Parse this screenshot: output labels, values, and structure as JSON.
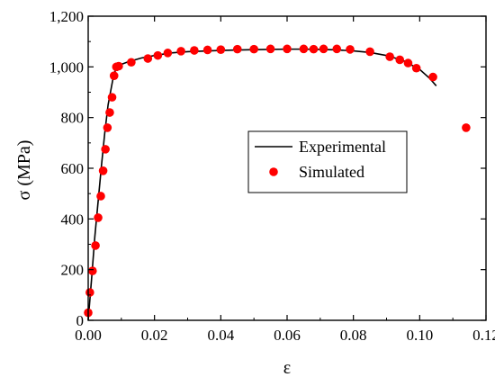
{
  "chart_data": {
    "type": "scatter",
    "xlabel": "ε",
    "ylabel": "σ (MPa)",
    "xlim": [
      0,
      0.12
    ],
    "ylim": [
      0,
      1200
    ],
    "x_ticks": [
      0,
      0.02,
      0.04,
      0.06,
      0.08,
      0.1,
      0.12
    ],
    "x_tick_labels": [
      "0.00",
      "0.02",
      "0.04",
      "0.06",
      "0.08",
      "0.10",
      "0.12"
    ],
    "y_ticks": [
      0,
      200,
      400,
      600,
      800,
      1000,
      1200
    ],
    "y_tick_labels": [
      "0",
      "200",
      "400",
      "600",
      "800",
      "1,000",
      "1,200"
    ],
    "grid": false,
    "legend_position": "center-right",
    "series": [
      {
        "name": "Experimental",
        "style": "line",
        "color": "#000000",
        "x": [
          0,
          0.001,
          0.002,
          0.003,
          0.004,
          0.005,
          0.006,
          0.007,
          0.0075,
          0.008,
          0.009,
          0.012,
          0.016,
          0.02,
          0.025,
          0.03,
          0.04,
          0.05,
          0.06,
          0.065,
          0.07,
          0.075,
          0.08,
          0.085,
          0.09,
          0.095,
          0.1,
          0.103,
          0.105
        ],
        "y": [
          0,
          160,
          330,
          470,
          610,
          740,
          850,
          920,
          955,
          980,
          1005,
          1020,
          1035,
          1045,
          1055,
          1060,
          1065,
          1068,
          1070,
          1070,
          1069,
          1067,
          1063,
          1057,
          1045,
          1025,
          990,
          955,
          925
        ]
      },
      {
        "name": "Simulated",
        "style": "marker",
        "color": "#ff0000",
        "x": [
          0.0,
          0.0005,
          0.0013,
          0.0022,
          0.003,
          0.0038,
          0.0045,
          0.0052,
          0.0058,
          0.0065,
          0.0072,
          0.0078,
          0.0085,
          0.0092,
          0.013,
          0.018,
          0.021,
          0.024,
          0.028,
          0.032,
          0.036,
          0.04,
          0.045,
          0.05,
          0.055,
          0.06,
          0.065,
          0.068,
          0.071,
          0.075,
          0.079,
          0.085,
          0.091,
          0.094,
          0.0965,
          0.099,
          0.104,
          0.114
        ],
        "y": [
          30,
          110,
          195,
          295,
          405,
          490,
          590,
          675,
          760,
          820,
          880,
          965,
          1000,
          1003,
          1018,
          1033,
          1045,
          1055,
          1062,
          1065,
          1067,
          1068,
          1070,
          1070,
          1071,
          1071,
          1071,
          1070,
          1071,
          1071,
          1069,
          1060,
          1040,
          1028,
          1015,
          995,
          960,
          760
        ]
      }
    ]
  }
}
